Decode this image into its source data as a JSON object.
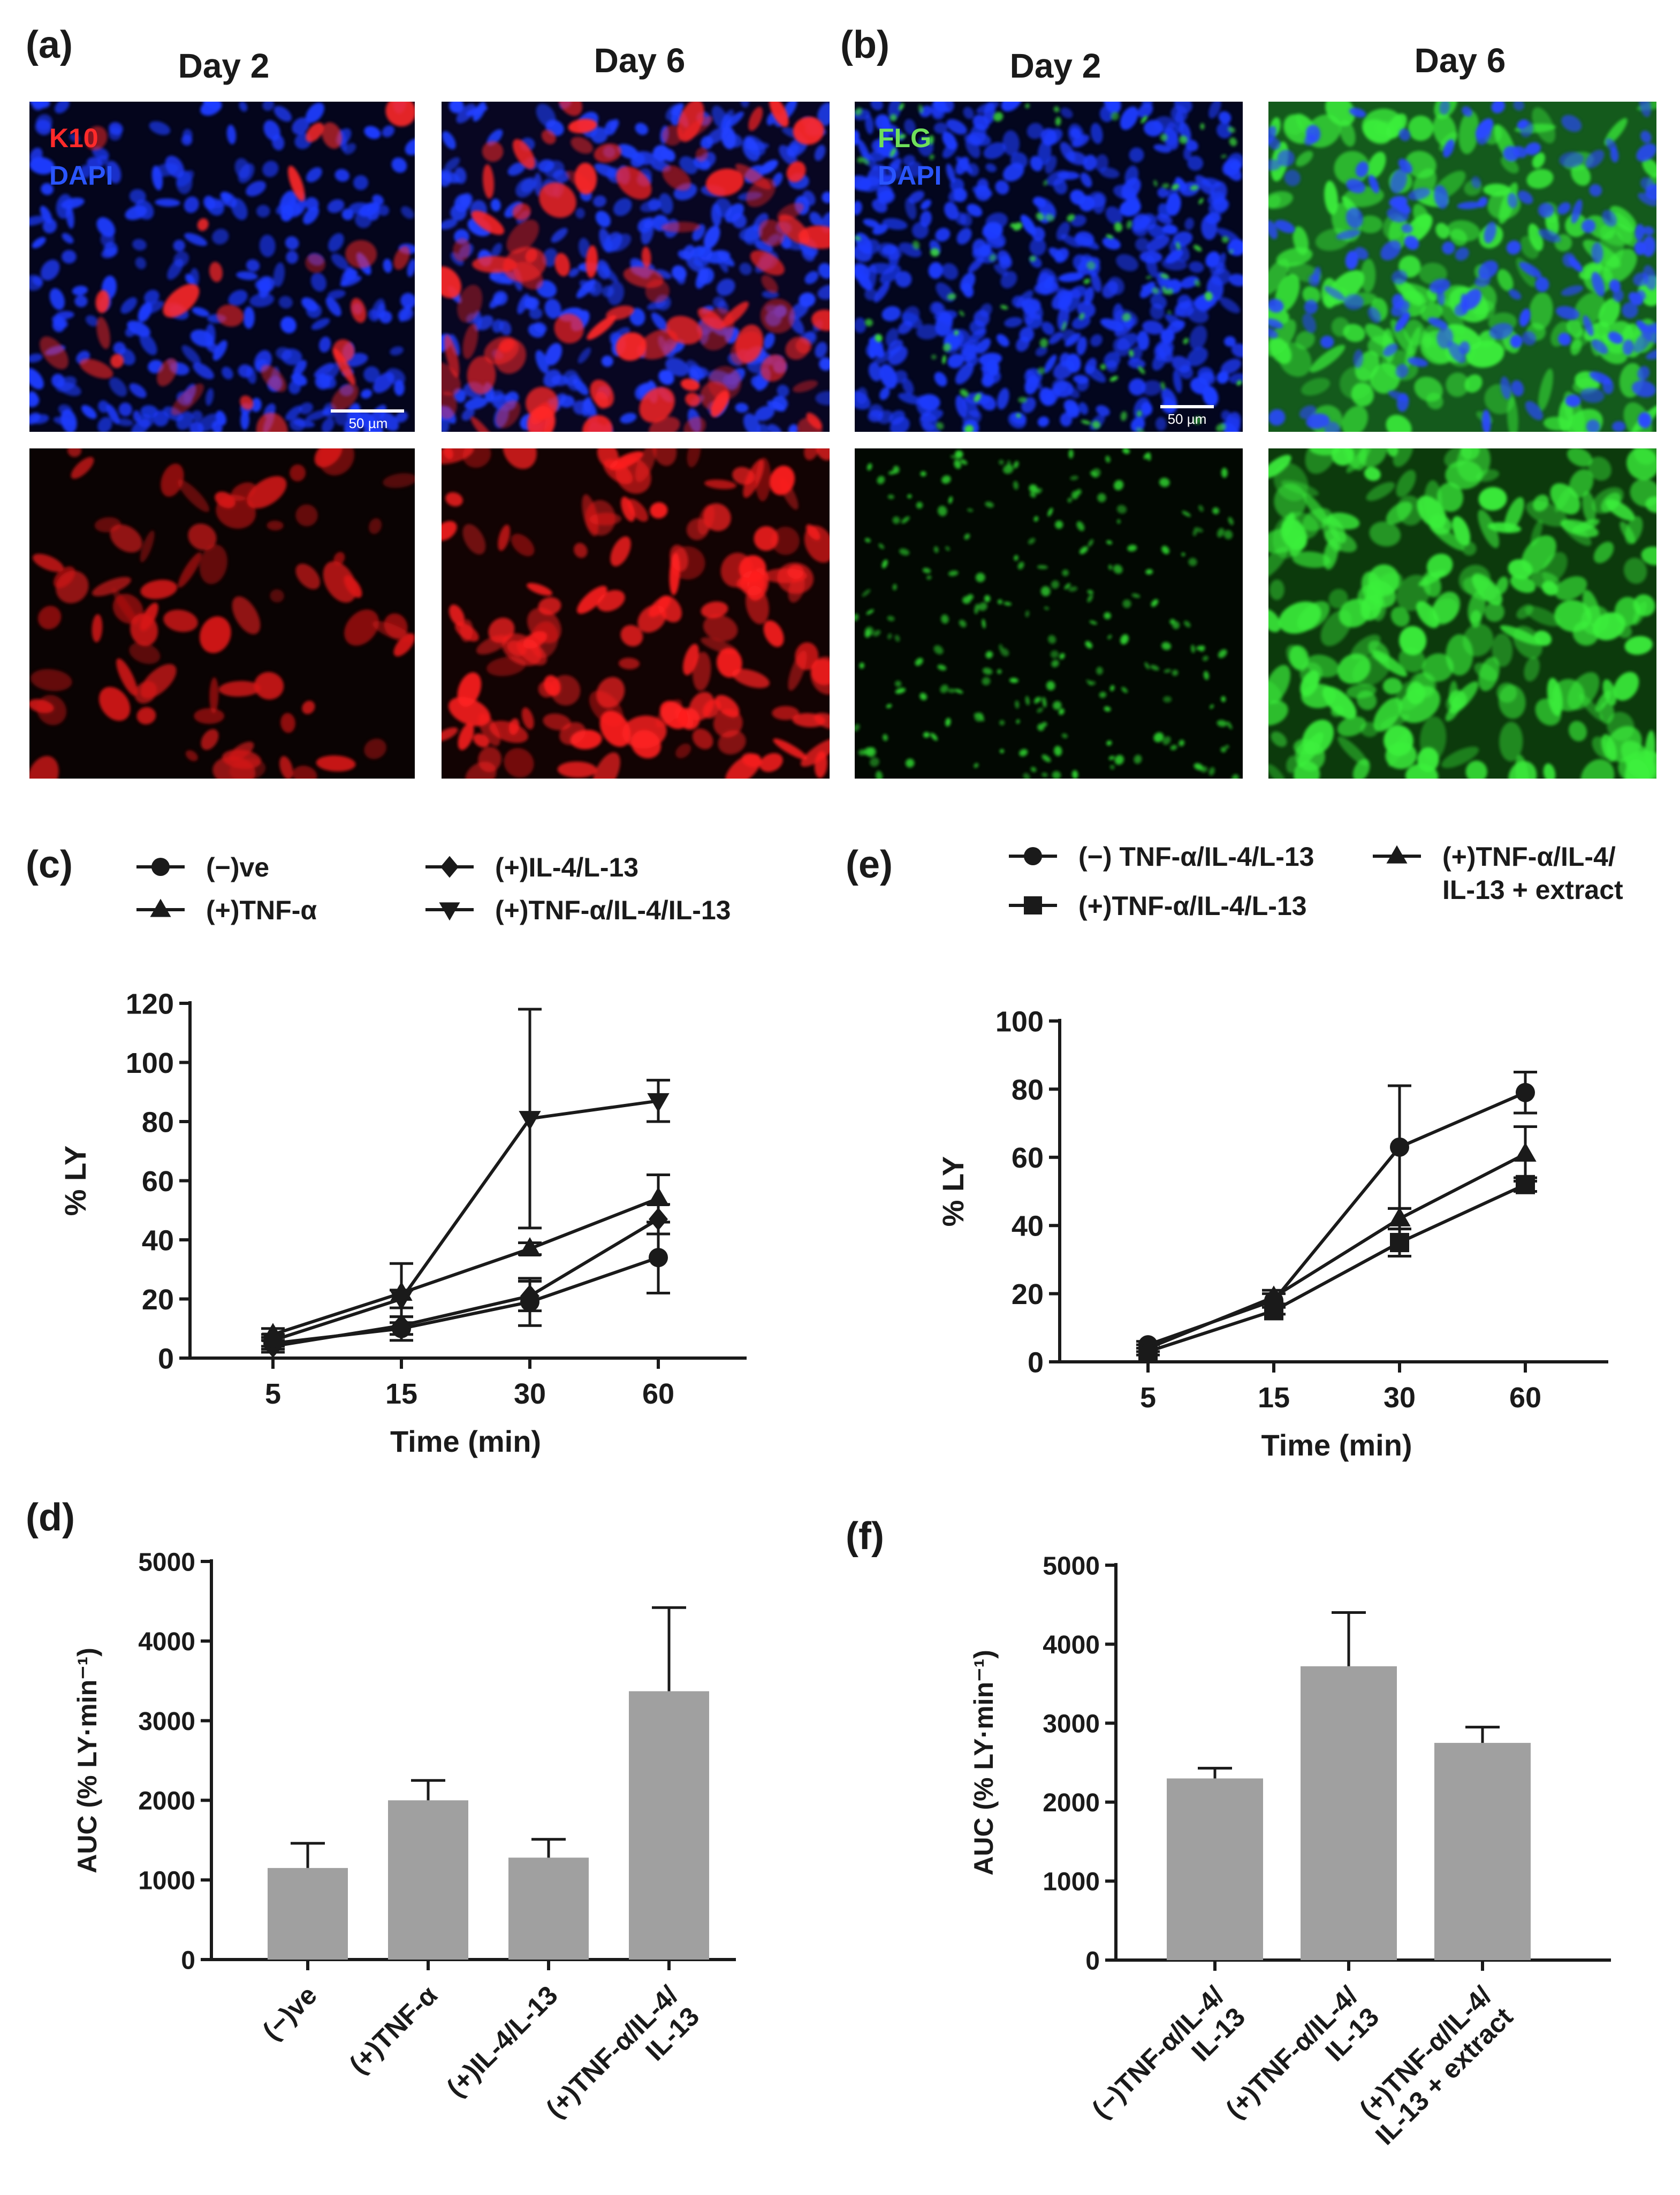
{
  "micrographs": {
    "a": {
      "label": "(a)",
      "col_titles": [
        "Day 2",
        "Day 6"
      ],
      "channel_marker": "K10",
      "channel_nuclei": "DAPI",
      "scale_bar": "50 µm",
      "marker_color": "#ff2020",
      "nuclei_color": "#1e3cff"
    },
    "b": {
      "label": "(b)",
      "col_titles": [
        "Day 2",
        "Day 6"
      ],
      "channel_marker": "FLG",
      "channel_nuclei": "DAPI",
      "scale_bar": "50 µm",
      "marker_color": "#3cf03c",
      "nuclei_color": "#1e3cff"
    }
  },
  "chart_data": [
    {
      "id": "c",
      "panel_label": "(c)",
      "type": "line",
      "x": [
        "5",
        "15",
        "30",
        "60"
      ],
      "xlabel": "Time (min)",
      "ylabel": "% LY",
      "ylim": [
        0,
        120
      ],
      "yticks": [
        0,
        20,
        40,
        60,
        80,
        100,
        120
      ],
      "grid": false,
      "legend_position": "top",
      "series": [
        {
          "name": "(−)ve",
          "marker": "circle",
          "values": [
            5,
            10,
            19,
            34
          ],
          "errors": [
            2,
            4,
            8,
            12
          ]
        },
        {
          "name": "(+)TNF-α",
          "marker": "triangle-up",
          "values": [
            8,
            22,
            37,
            54
          ],
          "errors": [
            2,
            10,
            2,
            8
          ]
        },
        {
          "name": "(+)IL-4/L-13",
          "marker": "diamond",
          "values": [
            4,
            11,
            21,
            47
          ],
          "errors": [
            2,
            3,
            5,
            5
          ]
        },
        {
          "name": "(+)TNF-α/IL-4/IL-13",
          "marker": "triangle-down",
          "values": [
            6,
            20,
            81,
            87
          ],
          "errors": [
            2,
            3,
            37,
            7
          ]
        }
      ]
    },
    {
      "id": "d",
      "panel_label": "(d)",
      "type": "bar",
      "categories": [
        "(−)ve",
        "(+)TNF-α",
        "(+)IL-4/L-13",
        "(+)TNF-α/IL-4/|IL-13"
      ],
      "values": [
        1150,
        2000,
        1280,
        3370
      ],
      "errors": [
        310,
        250,
        230,
        1050
      ],
      "ylabel": "AUC (% LY·min⁻¹)",
      "ylim": [
        0,
        5000
      ],
      "yticks": [
        0,
        1000,
        2000,
        3000,
        4000,
        5000
      ],
      "bar_color": "#a0a0a0"
    },
    {
      "id": "e",
      "panel_label": "(e)",
      "type": "line",
      "x": [
        "5",
        "15",
        "30",
        "60"
      ],
      "xlabel": "Time (min)",
      "ylabel": "% LY",
      "ylim": [
        0,
        100
      ],
      "yticks": [
        0,
        20,
        40,
        60,
        80,
        100
      ],
      "grid": false,
      "legend_position": "top",
      "series": [
        {
          "name": "(−) TNF-α/IL-4/L-13",
          "marker": "circle",
          "values": [
            5,
            18,
            63,
            79
          ],
          "errors": [
            1,
            2,
            18,
            6
          ]
        },
        {
          "name": "(+)TNF-α/IL-4/L-13",
          "marker": "square",
          "values": [
            3,
            15,
            35,
            52
          ],
          "errors": [
            1,
            1,
            4,
            2
          ]
        },
        {
          "name": "(+)TNF-α/IL-4/|IL-13 + extract",
          "marker": "triangle-up",
          "values": [
            4,
            19,
            42,
            61
          ],
          "errors": [
            1,
            2,
            3,
            8
          ]
        }
      ]
    },
    {
      "id": "f",
      "panel_label": "(f)",
      "type": "bar",
      "categories": [
        "(−)TNF-α/IL-4/|IL-13",
        "(+)TNF-α/IL-4/|IL-13",
        "(+)TNF-α/IL-4/|IL-13 + extract"
      ],
      "values": [
        2300,
        3720,
        2750
      ],
      "errors": [
        130,
        680,
        200
      ],
      "ylabel": "AUC (% LY·min⁻¹)",
      "ylim": [
        0,
        5000
      ],
      "yticks": [
        0,
        1000,
        2000,
        3000,
        4000,
        5000
      ],
      "bar_color": "#a0a0a0"
    }
  ]
}
